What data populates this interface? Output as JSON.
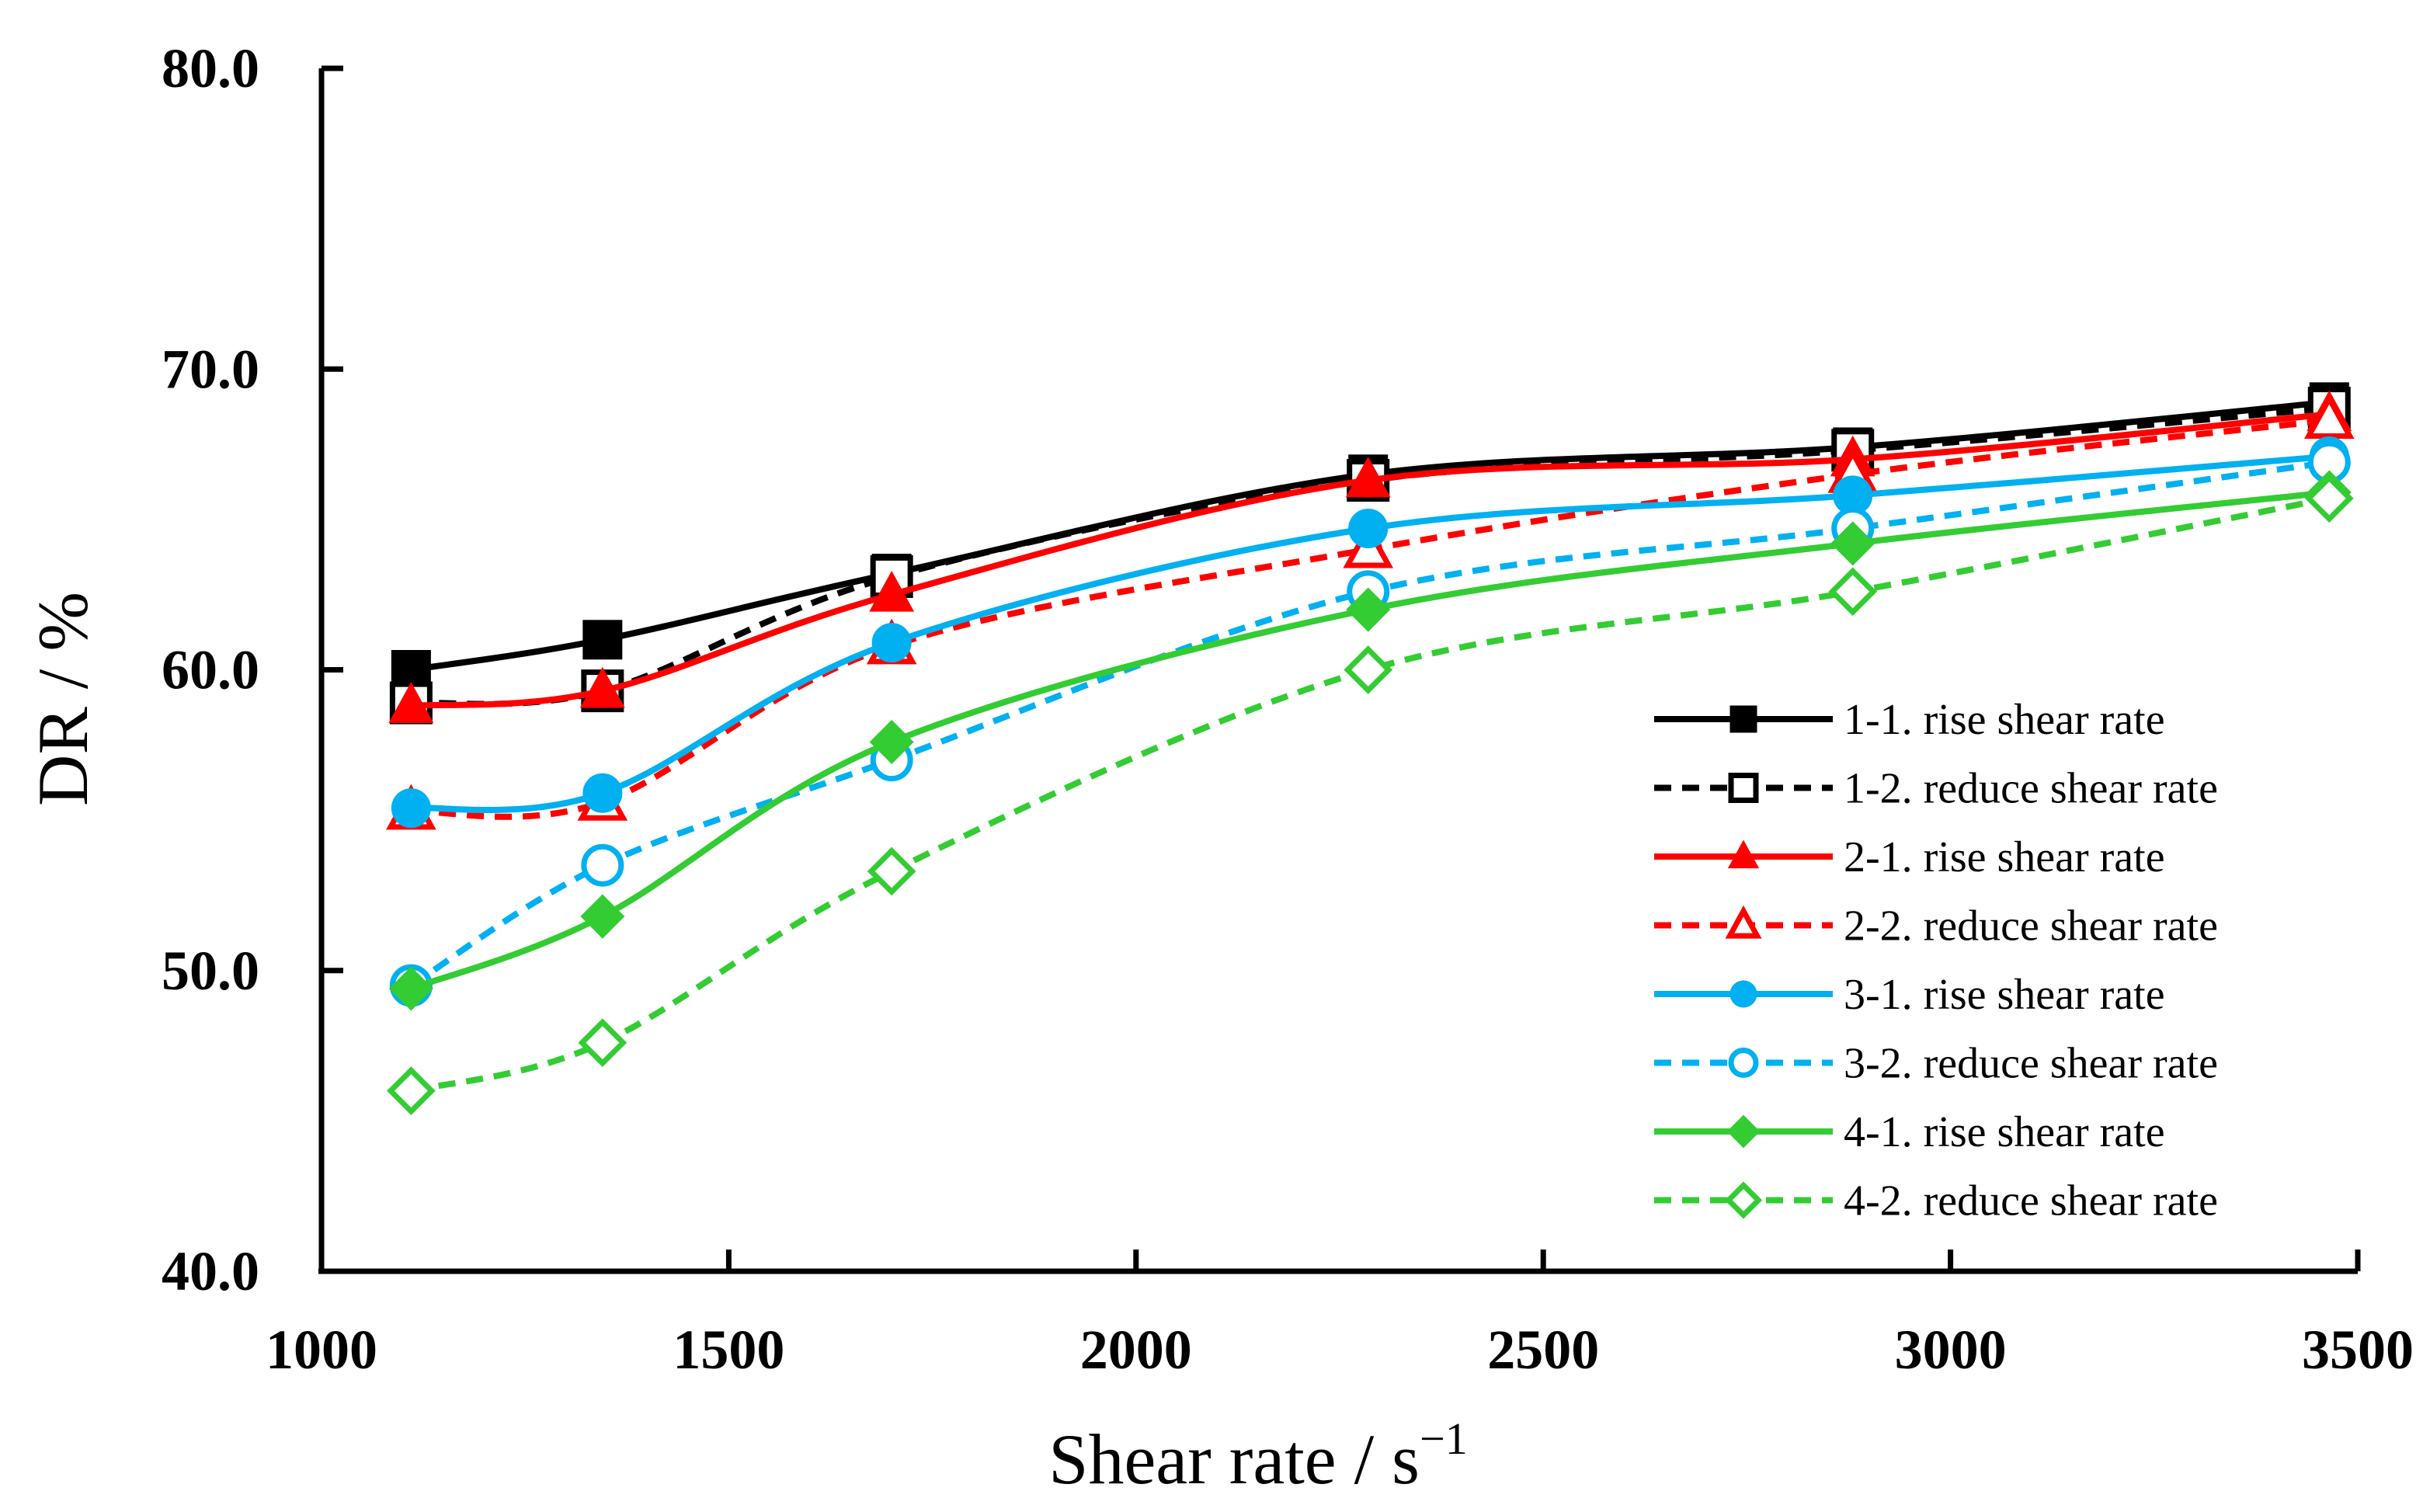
{
  "chart_data": {
    "type": "line",
    "title": "",
    "xlabel": "Shear rate / s",
    "xlabel_sup": "−1",
    "ylabel": "DR / %",
    "xlim": [
      1000,
      3500
    ],
    "ylim": [
      40,
      80
    ],
    "xticks": [
      1000,
      1500,
      2000,
      2500,
      3000,
      3500
    ],
    "xtick_labels": [
      "1000",
      "1500",
      "2000",
      "2500",
      "3000",
      "3500"
    ],
    "yticks": [
      40,
      50,
      60,
      70,
      80
    ],
    "ytick_labels": [
      "40.0",
      "50.0",
      "60.0",
      "70.0",
      "80.0"
    ],
    "grid": false,
    "legend_position": "right",
    "x": [
      1110,
      1345,
      1700,
      2285,
      2880,
      3465
    ],
    "series": [
      {
        "name": "1-1. rise shear rate",
        "color": "#000000",
        "dash": false,
        "marker": "square",
        "filled": true,
        "values": [
          60.0,
          61.0,
          63.2,
          66.5,
          67.4,
          68.9
        ]
      },
      {
        "name": "1-2. reduce shear rate",
        "color": "#000000",
        "dash": true,
        "marker": "square",
        "filled": false,
        "values": [
          58.9,
          59.3,
          63.1,
          66.3,
          67.3,
          68.7
        ]
      },
      {
        "name": "2-1. rise shear rate",
        "color": "#ff0000",
        "dash": false,
        "marker": "triangle",
        "filled": true,
        "values": [
          58.8,
          59.3,
          62.5,
          66.3,
          67.0,
          68.5
        ]
      },
      {
        "name": "2-2. reduce shear rate",
        "color": "#ff0000",
        "dash": true,
        "marker": "triangle",
        "filled": false,
        "values": [
          55.3,
          55.6,
          60.8,
          64.0,
          66.5,
          68.3
        ]
      },
      {
        "name": "3-1. rise shear rate",
        "color": "#00b0f0",
        "dash": false,
        "marker": "circle",
        "filled": true,
        "values": [
          55.4,
          55.9,
          60.9,
          64.7,
          65.8,
          67.1
        ]
      },
      {
        "name": "3-2. reduce shear rate",
        "color": "#00b0f0",
        "dash": true,
        "marker": "circle",
        "filled": false,
        "values": [
          49.5,
          53.5,
          57.0,
          62.6,
          64.7,
          66.9
        ]
      },
      {
        "name": "4-1. rise shear rate",
        "color": "#33cc33",
        "dash": false,
        "marker": "diamond",
        "filled": true,
        "values": [
          49.4,
          51.8,
          57.6,
          62.0,
          64.2,
          65.9
        ]
      },
      {
        "name": "4-2. reduce shear rate",
        "color": "#33cc33",
        "dash": true,
        "marker": "diamond",
        "filled": false,
        "values": [
          46.0,
          47.6,
          53.3,
          60.0,
          62.6,
          65.7
        ]
      }
    ]
  }
}
